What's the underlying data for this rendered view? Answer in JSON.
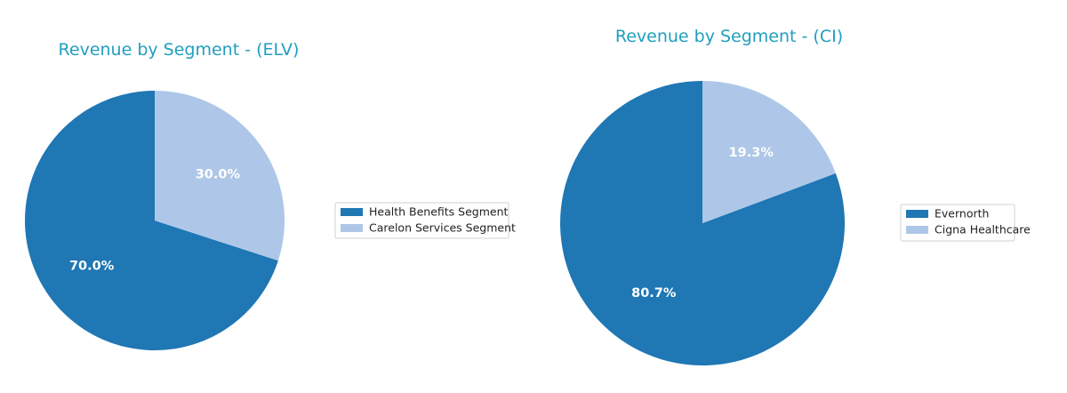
{
  "colors": {
    "title": "#1f9fbf",
    "slice_dark": "#1f77b4",
    "slice_light": "#aec7e8"
  },
  "chart_data": [
    {
      "type": "pie",
      "title": "Revenue by Segment - (ELV)",
      "labels": [
        "Health Benefits Segment",
        "Carelon Services Segment"
      ],
      "values": [
        70.0,
        30.0
      ],
      "value_labels": [
        "70.0%",
        "30.0%"
      ],
      "colors": [
        "#1f77b4",
        "#aec7e8"
      ],
      "start_angle_deg": 90,
      "direction": "counterclockwise",
      "legend_position": "right"
    },
    {
      "type": "pie",
      "title": "Revenue by Segment - (CI)",
      "labels": [
        "Evernorth",
        "Cigna Healthcare"
      ],
      "values": [
        80.7,
        19.3
      ],
      "value_labels": [
        "80.7%",
        "19.3%"
      ],
      "colors": [
        "#1f77b4",
        "#aec7e8"
      ],
      "start_angle_deg": 90,
      "direction": "counterclockwise",
      "legend_position": "right"
    }
  ]
}
